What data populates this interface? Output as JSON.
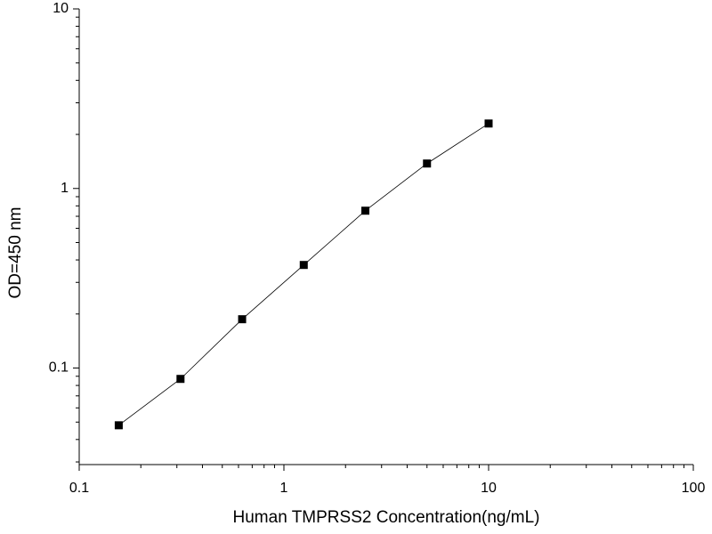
{
  "chart_data": {
    "type": "line",
    "x_label": "Human TMPRSS2 Concentration(ng/mL)",
    "y_label": "OD=450 nm",
    "x": [
      0.156,
      0.3125,
      0.625,
      1.25,
      2.5,
      5,
      10
    ],
    "values": [
      0.048,
      0.087,
      0.187,
      0.375,
      0.752,
      1.377,
      2.3
    ],
    "color": "#000000",
    "marker": "square",
    "xscale": "log",
    "yscale": "log",
    "xlim": [
      0.1,
      100
    ],
    "xticks": [
      0.1,
      1,
      10,
      100
    ],
    "ylim": [
      0.029,
      10
    ],
    "yticks": [
      0.1,
      1,
      10
    ]
  }
}
